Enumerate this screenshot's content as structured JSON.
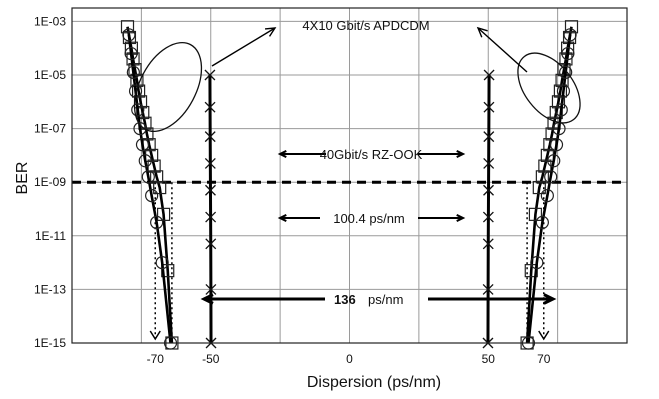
{
  "chart_data": {
    "type": "line",
    "title": "",
    "xlabel": "Dispersion (ps/nm)",
    "ylabel": "BER",
    "x_ticks": [
      "-70",
      "-50",
      "0",
      "50",
      "70"
    ],
    "x_tick_values": [
      -70,
      -50,
      0,
      50,
      70
    ],
    "y_ticks": [
      "1E-03",
      "1E-05",
      "1E-07",
      "1E-09",
      "1E-11",
      "1E-13",
      "1E-15"
    ],
    "y_tick_exponents": [
      -3,
      -5,
      -7,
      -9,
      -11,
      -13,
      -15
    ],
    "xlim": [
      -100,
      100
    ],
    "ylim_log10": [
      -15,
      -2.5
    ],
    "y_scale": "log",
    "grid": true,
    "threshold_ber_log10": -9,
    "series": [
      {
        "marker": "square",
        "x": [
          -80,
          -79.3,
          -78.6,
          -78,
          -77.3,
          -76.6,
          -76,
          -75.3,
          -74.5,
          -73.7,
          -73,
          -72.2,
          -71.3,
          -70.4,
          -69.5,
          -68.4,
          -67,
          -65.5,
          -64
        ],
        "y_log10": [
          -3.2,
          -3.6,
          -4.0,
          -4.4,
          -4.8,
          -5.2,
          -5.6,
          -6.0,
          -6.4,
          -6.8,
          -7.2,
          -7.6,
          -8.0,
          -8.4,
          -8.8,
          -9.2,
          -10.2,
          -12.3,
          -15
        ]
      },
      {
        "marker": "circle",
        "x": [
          -79.5,
          -78.7,
          -77.9,
          -77.1,
          -76.3,
          -75.5,
          -74.6,
          -73.6,
          -72.5,
          -71.3,
          -69.5,
          -67.5,
          -64.5
        ],
        "y_log10": [
          -3.5,
          -4.2,
          -4.9,
          -5.6,
          -6.3,
          -7.0,
          -7.6,
          -8.2,
          -8.8,
          -9.5,
          -10.5,
          -12.0,
          -15
        ]
      },
      {
        "marker": "square",
        "x": [
          80,
          79.3,
          78.6,
          78,
          77.3,
          76.6,
          76,
          75.3,
          74.5,
          73.7,
          73,
          72.2,
          71.3,
          70.4,
          69.5,
          68.4,
          67,
          65.5,
          64
        ],
        "y_log10": [
          -3.2,
          -3.6,
          -4.0,
          -4.4,
          -4.8,
          -5.2,
          -5.6,
          -6.0,
          -6.4,
          -6.8,
          -7.2,
          -7.6,
          -8.0,
          -8.4,
          -8.8,
          -9.2,
          -10.2,
          -12.3,
          -15
        ]
      },
      {
        "marker": "circle",
        "x": [
          79.5,
          78.7,
          77.9,
          77.1,
          76.3,
          75.5,
          74.6,
          73.6,
          72.5,
          71.3,
          69.5,
          67.5,
          64.5
        ],
        "y_log10": [
          -3.5,
          -4.2,
          -4.9,
          -5.6,
          -6.3,
          -7.0,
          -7.6,
          -8.2,
          -8.8,
          -9.5,
          -10.5,
          -12.0,
          -15
        ]
      },
      {
        "marker": "x",
        "x": [
          -50.3,
          -50.25,
          -50.2,
          -50.15,
          -50.1,
          -50.05,
          -50,
          -49.95,
          -49.9
        ],
        "y_log10": [
          -5.0,
          -6.2,
          -7.3,
          -8.3,
          -9.3,
          -10.3,
          -11.3,
          -13.0,
          -15
        ]
      },
      {
        "marker": "x",
        "x": [
          50.3,
          50.25,
          50.2,
          50.15,
          50.1,
          50.05,
          50,
          49.95,
          49.9
        ],
        "y_log10": [
          -5.0,
          -6.2,
          -7.3,
          -8.3,
          -9.3,
          -10.3,
          -11.3,
          -13.0,
          -15
        ]
      }
    ],
    "annotations": {
      "apdcdm": "4X10 Gbit/s APDCDM",
      "rzook": "40Gbit/s  RZ-OOK",
      "width_rzook_value": "100.4 ps/nm",
      "width_apdcdm_value": "136",
      "width_apdcdm_unit": "ps/nm"
    }
  }
}
